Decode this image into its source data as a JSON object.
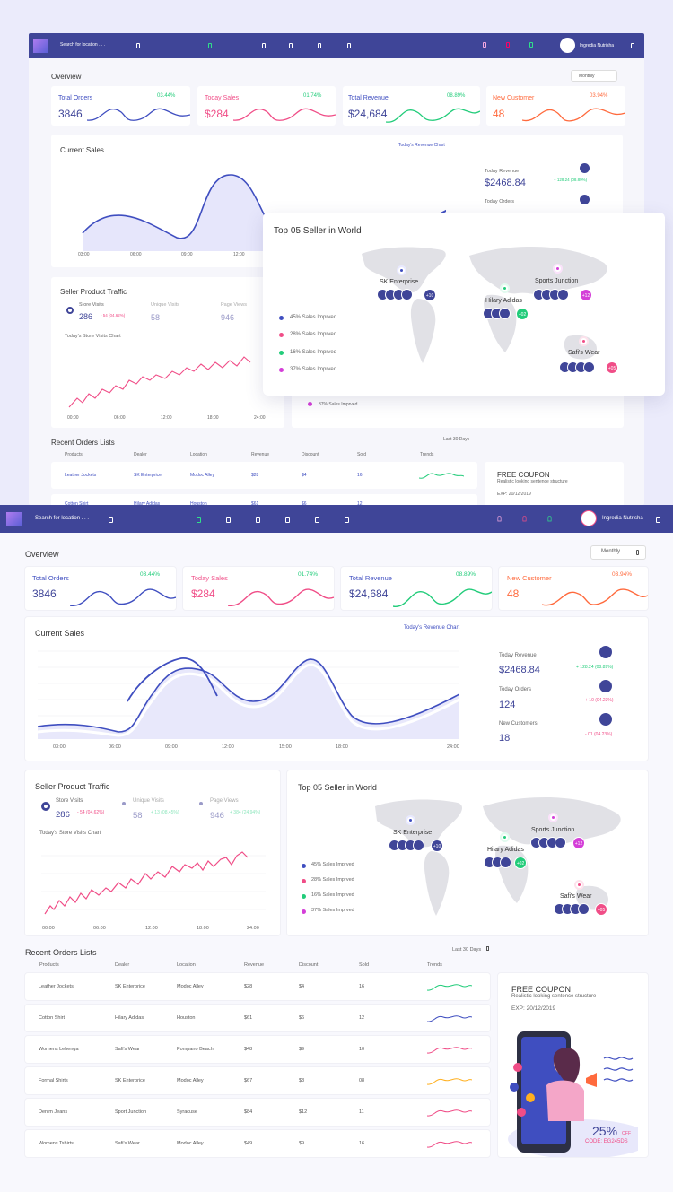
{
  "header": {
    "search_placeholder": "Search for location . . .",
    "user_name": "Ingredia Nutrisha"
  },
  "colors": {
    "primary": "#3f4598",
    "blue": "#3f4ec0",
    "pink": "#f04d87",
    "green": "#22cc7a",
    "orange": "#ff6a3d",
    "purple": "#d43fd8"
  },
  "overview": {
    "title": "Overview",
    "period": "Monthly",
    "stats": [
      {
        "label": "Total Orders",
        "value": "3846",
        "change": "03.44%"
      },
      {
        "label": "Today Sales",
        "value": "$284",
        "change": "01.74%"
      },
      {
        "label": "Total Revenue",
        "value": "$24,684",
        "change": "08.89%"
      },
      {
        "label": "New Customer",
        "value": "48",
        "change": "03.94%"
      }
    ]
  },
  "current_sales": {
    "title": "Current Sales",
    "chart_title": "Today's Revenue Chart",
    "x_ticks": [
      "03:00",
      "06:00",
      "09:00",
      "12:00",
      "15:00",
      "18:00",
      "24:00"
    ],
    "side": [
      {
        "label": "Today Revenue",
        "value": "$2468.84",
        "change": "+ 128.24 (08.89%)"
      },
      {
        "label": "Today Orders",
        "value": "124",
        "change": "+ 10 (04.23%)"
      },
      {
        "label": "New Customers",
        "value": "18",
        "change": "- 01 (04.23%)"
      }
    ]
  },
  "traffic": {
    "title": "Seller Product Traffic",
    "metrics": [
      {
        "label": "Store Visits",
        "value": "286",
        "change": "- 54 (04.62%)"
      },
      {
        "label": "Unique Visits",
        "value": "58",
        "change": "+ 13 (08.45%)"
      },
      {
        "label": "Page Views",
        "value": "946",
        "change": "+ 384 (24.94%)"
      }
    ],
    "chart_title": "Today's Store Visits Chart",
    "x_ticks": [
      "00:00",
      "06:00",
      "12:00",
      "18:00",
      "24:00"
    ]
  },
  "world": {
    "title": "Top 05 Seller in World",
    "legend": [
      "45% Sales Imprved",
      "28% Sales Imprved",
      "16% Sales Imprved",
      "37% Sales Imprved"
    ],
    "sellers": [
      {
        "name": "SK Enterprise",
        "extra": "+10"
      },
      {
        "name": "Hilary Adidas",
        "extra": "+02"
      },
      {
        "name": "Sports Junction",
        "extra": "+12"
      },
      {
        "name": "Safi's Wear",
        "extra": "+05"
      }
    ]
  },
  "orders": {
    "title": "Recent Orders Lists",
    "filter": "Last 30 Days",
    "columns": [
      "Products",
      "Dealer",
      "Location",
      "Revenue",
      "Discount",
      "Sold",
      "Trends"
    ],
    "rows": [
      {
        "product": "Leather Jockets",
        "dealer": "SK Enterprice",
        "location": "Modoc Alley",
        "revenue": "$28",
        "discount": "$4",
        "sold": "16"
      },
      {
        "product": "Cotton Shirt",
        "dealer": "Hilary Adidas",
        "location": "Houston",
        "revenue": "$61",
        "discount": "$6",
        "sold": "12"
      },
      {
        "product": "Womens Lehenga",
        "dealer": "Safi's Wear",
        "location": "Pompano Beach",
        "revenue": "$48",
        "discount": "$9",
        "sold": "10"
      },
      {
        "product": "Formal Shirts",
        "dealer": "SK Enterprice",
        "location": "Modoc Alley",
        "revenue": "$67",
        "discount": "$8",
        "sold": "08"
      },
      {
        "product": "Denim Jeans",
        "dealer": "Sport Junction",
        "location": "Syracuse",
        "revenue": "$84",
        "discount": "$12",
        "sold": "11"
      },
      {
        "product": "Womens Tshirts",
        "dealer": "Safi's Wear",
        "location": "Modoc Alley",
        "revenue": "$49",
        "discount": "$9",
        "sold": "16"
      }
    ]
  },
  "coupon": {
    "title": "FREE COUPON",
    "subtitle": "Realistic looking sentence structure",
    "exp": "EXP:  20/12/2019",
    "percent": "25%",
    "off": "OFF",
    "code": "CODE: EG245DS"
  }
}
